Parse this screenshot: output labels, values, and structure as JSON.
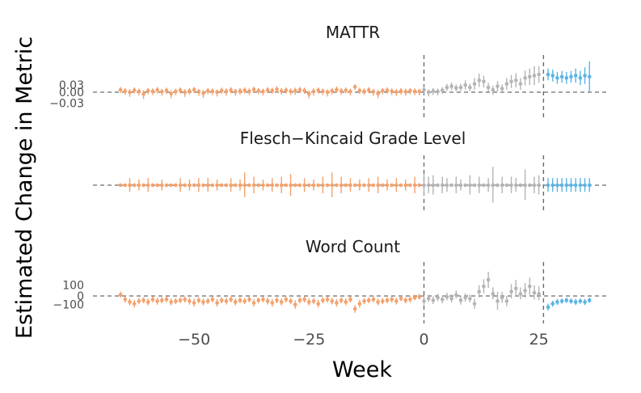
{
  "chart_data": {
    "type": "scatter",
    "xlabel": "Week",
    "ylabel": "Estimated Change in Metric",
    "xlim": [
      -72,
      40
    ],
    "x_ticks": [
      -50,
      -25,
      0,
      25
    ],
    "x_tick_labels": [
      "−50",
      "−25",
      "0",
      "25"
    ],
    "vlines": [
      0,
      26
    ],
    "colors": {
      "pre": "#F4A16C",
      "mid": "#B4B4B4",
      "post": "#5BB4E4"
    },
    "panels": [
      {
        "title": "MATTR",
        "ylim": [
          -0.07,
          0.15
        ],
        "y_ticks": [
          -0.03,
          0,
          0.03
        ],
        "y_tick_labels": [
          "−0.03",
          "0.00",
          "0.03"
        ],
        "pre": {
          "x": [
            -66,
            -65,
            -64,
            -63,
            -62,
            -61,
            -60,
            -59,
            -58,
            -57,
            -56,
            -55,
            -54,
            -53,
            -52,
            -51,
            -50,
            -49,
            -48,
            -47,
            -46,
            -45,
            -44,
            -43,
            -42,
            -41,
            -40,
            -39,
            -38,
            -37,
            -36,
            -35,
            -34,
            -33,
            -32,
            -31,
            -30,
            -29,
            -28,
            -27,
            -26,
            -25,
            -24,
            -23,
            -22,
            -21,
            -20,
            -19,
            -18,
            -17,
            -16,
            -15,
            -14,
            -13,
            -12,
            -11,
            -10,
            -9,
            -8,
            -7,
            -6,
            -5,
            -4,
            -3,
            -2,
            -1
          ],
          "y": [
            0.01,
            0.005,
            0.0,
            0.008,
            0.003,
            -0.005,
            0.006,
            0.004,
            0.009,
            0.002,
            0.007,
            -0.004,
            0.003,
            0.008,
            0.0,
            0.005,
            0.01,
            0.002,
            -0.003,
            0.006,
            0.004,
            0.0,
            0.007,
            0.003,
            0.009,
            0.002,
            0.005,
            0.008,
            0.004,
            0.011,
            0.006,
            0.003,
            0.009,
            0.007,
            0.012,
            0.005,
            0.008,
            0.004,
            0.006,
            0.01,
            0.007,
            -0.005,
            0.003,
            0.008,
            0.004,
            0.0,
            0.006,
            0.011,
            0.005,
            0.008,
            0.003,
            0.022,
            0.007,
            0.004,
            0.009,
            0.002,
            -0.004,
            0.006,
            0.008,
            0.004,
            0.001,
            0.005,
            0.002,
            0.006,
            0.004,
            0.003
          ],
          "err": [
            0.012,
            0.012,
            0.013,
            0.012,
            0.012,
            0.014,
            0.012,
            0.012,
            0.013,
            0.012,
            0.012,
            0.013,
            0.012,
            0.012,
            0.013,
            0.012,
            0.012,
            0.012,
            0.013,
            0.012,
            0.012,
            0.012,
            0.012,
            0.013,
            0.012,
            0.012,
            0.012,
            0.012,
            0.012,
            0.013,
            0.012,
            0.012,
            0.012,
            0.012,
            0.013,
            0.012,
            0.012,
            0.012,
            0.013,
            0.012,
            0.012,
            0.012,
            0.013,
            0.012,
            0.012,
            0.012,
            0.012,
            0.013,
            0.012,
            0.012,
            0.012,
            0.012,
            0.012,
            0.012,
            0.012,
            0.012,
            0.013,
            0.012,
            0.012,
            0.012,
            0.012,
            0.012,
            0.012,
            0.012,
            0.012,
            0.012
          ]
        },
        "mid": {
          "x": [
            0,
            1,
            2,
            3,
            4,
            5,
            6,
            7,
            8,
            9,
            10,
            11,
            12,
            13,
            14,
            15,
            16,
            17,
            18,
            19,
            20,
            21,
            22,
            23,
            24,
            25
          ],
          "y": [
            0.01,
            0.0,
            0.005,
            0.003,
            0.008,
            0.02,
            0.025,
            0.018,
            0.02,
            0.03,
            0.02,
            0.035,
            0.05,
            0.045,
            0.02,
            0.01,
            0.025,
            0.015,
            0.035,
            0.045,
            0.05,
            0.035,
            0.06,
            0.065,
            0.07,
            0.075
          ],
          "err": [
            0.015,
            0.012,
            0.013,
            0.012,
            0.013,
            0.015,
            0.016,
            0.014,
            0.015,
            0.02,
            0.016,
            0.025,
            0.028,
            0.025,
            0.02,
            0.018,
            0.022,
            0.018,
            0.025,
            0.028,
            0.03,
            0.025,
            0.032,
            0.035,
            0.04,
            0.035
          ]
        },
        "post": {
          "x": [
            27,
            28,
            29,
            30,
            31,
            32,
            33,
            34,
            35,
            36
          ],
          "y": [
            0.075,
            0.07,
            0.06,
            0.065,
            0.06,
            0.065,
            0.07,
            0.06,
            0.07,
            0.065
          ],
          "err": [
            0.025,
            0.025,
            0.025,
            0.025,
            0.025,
            0.025,
            0.03,
            0.03,
            0.035,
            0.065
          ]
        }
      },
      {
        "title": "Flesch−Kincaid Grade Level",
        "ylim": [
          -1,
          1
        ],
        "y_ticks": [],
        "y_tick_labels": [],
        "pre": {
          "x": [
            -66,
            -65,
            -64,
            -63,
            -62,
            -61,
            -60,
            -59,
            -58,
            -57,
            -56,
            -55,
            -54,
            -53,
            -52,
            -51,
            -50,
            -49,
            -48,
            -47,
            -46,
            -45,
            -44,
            -43,
            -42,
            -41,
            -40,
            -39,
            -38,
            -37,
            -36,
            -35,
            -34,
            -33,
            -32,
            -31,
            -30,
            -29,
            -28,
            -27,
            -26,
            -25,
            -24,
            -23,
            -22,
            -21,
            -20,
            -19,
            -18,
            -17,
            -16,
            -15,
            -14,
            -13,
            -12,
            -11,
            -10,
            -9,
            -8,
            -7,
            -6,
            -5,
            -4,
            -3,
            -2,
            -1
          ],
          "y": [
            0,
            0,
            0,
            0,
            0,
            0,
            0,
            0,
            0,
            0,
            0,
            0,
            0,
            0,
            0,
            0,
            0,
            0,
            0,
            0,
            0,
            0,
            0,
            0,
            0,
            0,
            0,
            0,
            0,
            0,
            0,
            0,
            0,
            0,
            0,
            0,
            0,
            0,
            0,
            0,
            0,
            0,
            0,
            0,
            0,
            0,
            0,
            0,
            0,
            0,
            0,
            0,
            0,
            0,
            0,
            0,
            0,
            0,
            0,
            0,
            0,
            0,
            0,
            0,
            0,
            0
          ],
          "err": [
            0.02,
            0.04,
            0.25,
            0.02,
            0.2,
            0.02,
            0.25,
            0.04,
            0.02,
            0.2,
            0.02,
            0.05,
            0.02,
            0.25,
            0.03,
            0.2,
            0.02,
            0.25,
            0.04,
            0.25,
            0.02,
            0.2,
            0.03,
            0.02,
            0.25,
            0.02,
            0.2,
            0.45,
            0.02,
            0.3,
            0.04,
            0.2,
            0.02,
            0.25,
            0.03,
            0.3,
            0.02,
            0.4,
            0.03,
            0.02,
            0.25,
            0.03,
            0.2,
            0.02,
            0.3,
            0.04,
            0.45,
            0.02,
            0.3,
            0.03,
            0.25,
            0.02,
            0.2,
            0.04,
            0.25,
            0.02,
            0.3,
            0.03,
            0.2,
            0.02,
            0.25,
            0.03,
            0.2,
            0.02,
            0.3,
            0.03
          ]
        },
        "mid": {
          "x": [
            0,
            1,
            2,
            3,
            4,
            5,
            6,
            7,
            8,
            9,
            10,
            11,
            12,
            13,
            14,
            15,
            16,
            17,
            18,
            19,
            20,
            21,
            22,
            23,
            24,
            25
          ],
          "y": [
            0,
            0,
            0,
            0,
            0,
            0,
            0,
            0,
            0,
            0,
            0,
            0,
            0,
            0,
            0,
            0,
            0,
            0,
            0,
            0,
            0,
            0,
            0,
            0,
            0,
            0
          ],
          "err": [
            0.4,
            0.3,
            0.35,
            0.05,
            0.3,
            0.25,
            0.05,
            0.3,
            0.2,
            0.05,
            0.35,
            0.05,
            0.3,
            0.05,
            0.25,
            0.65,
            0.05,
            0.3,
            0.05,
            0.3,
            0.25,
            0.05,
            0.55,
            0.05,
            0.3,
            0.35
          ]
        },
        "post": {
          "x": [
            27,
            28,
            29,
            30,
            31,
            32,
            33,
            34,
            35,
            36
          ],
          "y": [
            0,
            0,
            0,
            0,
            0,
            0,
            0,
            0,
            0,
            0
          ],
          "err": [
            0.25,
            0.25,
            0.25,
            0.25,
            0.25,
            0.25,
            0.25,
            0.25,
            0.25,
            0.25
          ]
        }
      },
      {
        "title": "Word Count",
        "ylim": [
          -300,
          300
        ],
        "y_ticks": [
          -100,
          0,
          100
        ],
        "y_tick_labels": [
          "−100",
          "0",
          "100"
        ],
        "pre": {
          "x": [
            -66,
            -65,
            -64,
            -63,
            -62,
            -61,
            -60,
            -59,
            -58,
            -57,
            -56,
            -55,
            -54,
            -53,
            -52,
            -51,
            -50,
            -49,
            -48,
            -47,
            -46,
            -45,
            -44,
            -43,
            -42,
            -41,
            -40,
            -39,
            -38,
            -37,
            -36,
            -35,
            -34,
            -33,
            -32,
            -31,
            -30,
            -29,
            -28,
            -27,
            -26,
            -25,
            -24,
            -23,
            -22,
            -21,
            -20,
            -19,
            -18,
            -17,
            -16,
            -15,
            -14,
            -13,
            -12,
            -11,
            -10,
            -9,
            -8,
            -7,
            -6,
            -5,
            -4,
            -3,
            -2,
            -1
          ],
          "y": [
            10,
            -40,
            -70,
            -90,
            -60,
            -50,
            -70,
            -40,
            -60,
            -50,
            -40,
            -70,
            -60,
            -50,
            -40,
            -60,
            -80,
            -50,
            -70,
            -60,
            -40,
            -80,
            -50,
            -60,
            -40,
            -70,
            -50,
            -60,
            -40,
            -80,
            -50,
            -40,
            -60,
            -80,
            -50,
            -70,
            -40,
            -60,
            -100,
            -50,
            -40,
            -70,
            -60,
            -90,
            -50,
            -40,
            -60,
            -80,
            -50,
            -70,
            -40,
            -150,
            -90,
            -60,
            -50,
            -40,
            -70,
            -60,
            -50,
            -40,
            -60,
            -30,
            -50,
            -40,
            -20,
            -10
          ],
          "err": [
            30,
            35,
            40,
            45,
            35,
            35,
            40,
            35,
            40,
            35,
            35,
            40,
            35,
            35,
            35,
            40,
            45,
            35,
            40,
            35,
            35,
            45,
            35,
            40,
            35,
            40,
            35,
            35,
            35,
            45,
            35,
            35,
            40,
            45,
            35,
            40,
            35,
            35,
            50,
            35,
            35,
            40,
            35,
            45,
            35,
            35,
            40,
            45,
            35,
            40,
            35,
            45,
            45,
            35,
            35,
            35,
            40,
            35,
            35,
            35,
            40,
            30,
            35,
            35,
            30,
            30
          ]
        },
        "mid": {
          "x": [
            0,
            1,
            2,
            3,
            4,
            5,
            6,
            7,
            8,
            9,
            10,
            11,
            12,
            13,
            14,
            15,
            16,
            17,
            18,
            19,
            20,
            21,
            22,
            23,
            24,
            25
          ],
          "y": [
            -60,
            -30,
            -50,
            -20,
            -40,
            -10,
            -30,
            10,
            -50,
            -20,
            -30,
            -90,
            40,
            90,
            150,
            20,
            -60,
            -20,
            -60,
            40,
            70,
            20,
            50,
            90,
            30,
            20
          ],
          "err": [
            50,
            40,
            45,
            40,
            45,
            40,
            45,
            40,
            50,
            45,
            45,
            60,
            60,
            65,
            75,
            60,
            100,
            60,
            60,
            70,
            80,
            60,
            70,
            80,
            70,
            70
          ]
        },
        "post": {
          "x": [
            27,
            28,
            29,
            30,
            31,
            32,
            33,
            34,
            35,
            36
          ],
          "y": [
            -130,
            -90,
            -70,
            -60,
            -50,
            -60,
            -70,
            -60,
            -70,
            -50
          ],
          "err": [
            40,
            35,
            35,
            30,
            30,
            30,
            35,
            30,
            35,
            30
          ]
        }
      }
    ]
  }
}
